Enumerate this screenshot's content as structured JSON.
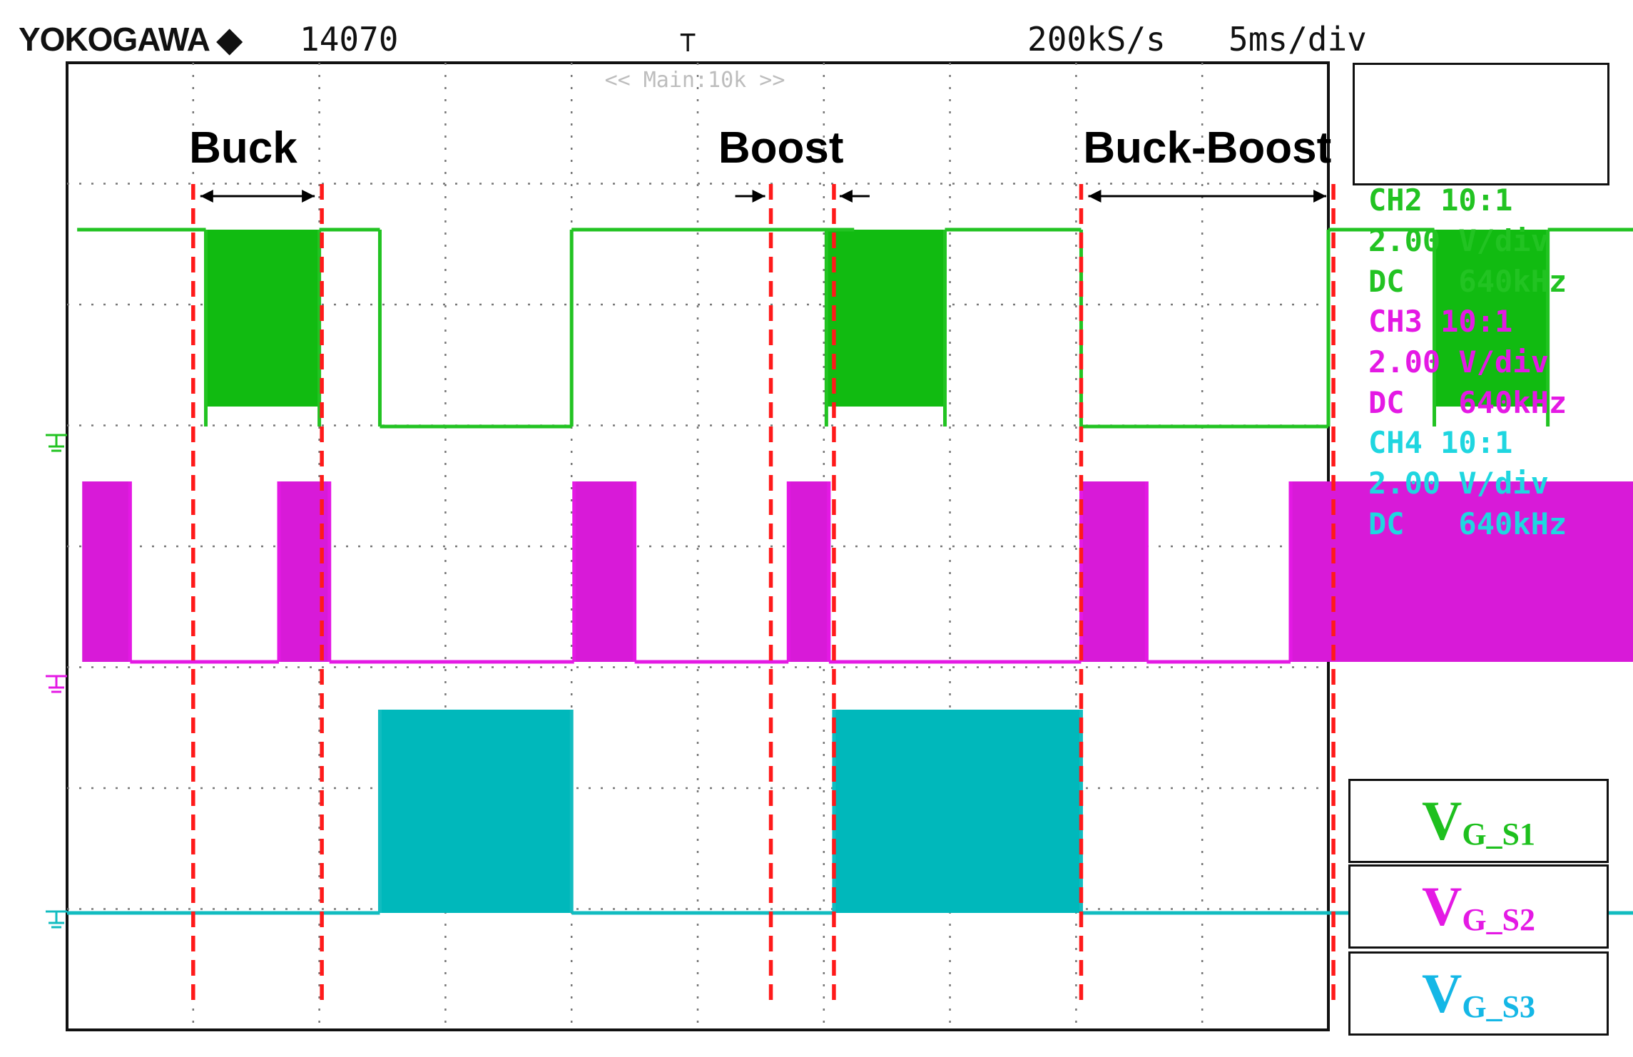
{
  "header": {
    "brand": "YOKOGAWA",
    "brand_mark": "◆",
    "record": "14070",
    "trigger_icon": "trigger-icon",
    "sample_rate": "200kS/s",
    "time_div": "5ms/div"
  },
  "zoom_label": "<< Main:10k >>",
  "channel_info": [
    {
      "name": "CH2 10:1",
      "vdiv": "2.00 V/div",
      "coupling": "DC",
      "bw": "640kHz",
      "color": "#22c322"
    },
    {
      "name": "CH3 10:1",
      "vdiv": "2.00 V/div",
      "coupling": "DC",
      "bw": "640kHz",
      "color": "#e419e4"
    },
    {
      "name": "CH4 10:1",
      "vdiv": "2.00 V/div",
      "coupling": "DC",
      "bw": "640kHz",
      "color": "#1fd6e0"
    }
  ],
  "legend": [
    {
      "main": "V",
      "sub": "G_S1",
      "color": "#1ec01e"
    },
    {
      "main": "V",
      "sub": "G_S2",
      "color": "#e419e4"
    },
    {
      "main": "V",
      "sub": "G_S3",
      "color": "#14b7e6"
    }
  ],
  "chart_data": {
    "type": "line",
    "x_unit": "ms",
    "time_per_div_ms": 5,
    "x_divisions": 10,
    "y_divisions": 8,
    "grid": true,
    "mode_labels": [
      "Buck",
      "Boost",
      "Buck-Boost"
    ],
    "mode_markers_ms": [
      5.0,
      10.1,
      27.9,
      30.4,
      40.2,
      50.2
    ],
    "series": [
      {
        "channel": "CH2",
        "color": "#22c322",
        "segments": [
          {
            "from": 0.4,
            "to": 5.5,
            "state": "high"
          },
          {
            "from": 5.5,
            "to": 10.0,
            "state": "pwm"
          },
          {
            "from": 10.0,
            "to": 12.4,
            "state": "high"
          },
          {
            "from": 12.4,
            "to": 20.0,
            "state": "low"
          },
          {
            "from": 20.0,
            "to": 31.2,
            "state": "high"
          },
          {
            "from": 30.1,
            "to": 34.8,
            "state": "pwm"
          },
          {
            "from": 34.8,
            "to": 40.2,
            "state": "high"
          },
          {
            "from": 40.2,
            "to": 50.0,
            "state": "low"
          },
          {
            "from": 50.0,
            "to": 54.2,
            "state": "high"
          },
          {
            "from": 54.2,
            "to": 58.7,
            "state": "pwm"
          },
          {
            "from": 58.7,
            "to": 62.5,
            "state": "high"
          }
        ]
      },
      {
        "channel": "CH3",
        "color": "#e419e4",
        "segments": [
          {
            "from": 0.6,
            "to": 2.5,
            "state": "pwm"
          },
          {
            "from": 2.5,
            "to": 8.4,
            "state": "low"
          },
          {
            "from": 8.4,
            "to": 10.4,
            "state": "pwm"
          },
          {
            "from": 10.4,
            "to": 20.1,
            "state": "low"
          },
          {
            "from": 20.1,
            "to": 22.5,
            "state": "pwm"
          },
          {
            "from": 22.5,
            "to": 28.6,
            "state": "low"
          },
          {
            "from": 28.6,
            "to": 30.2,
            "state": "pwm"
          },
          {
            "from": 30.2,
            "to": 40.2,
            "state": "low"
          },
          {
            "from": 40.2,
            "to": 42.8,
            "state": "pwm"
          },
          {
            "from": 42.8,
            "to": 48.5,
            "state": "low"
          },
          {
            "from": 48.5,
            "to": 62.5,
            "state": "pwm"
          }
        ]
      },
      {
        "channel": "CH4",
        "color": "#12bcc0",
        "segments": [
          {
            "from": 0.0,
            "to": 12.4,
            "state": "low"
          },
          {
            "from": 12.4,
            "to": 20.0,
            "state": "pwm"
          },
          {
            "from": 20.0,
            "to": 30.4,
            "state": "low"
          },
          {
            "from": 30.4,
            "to": 40.2,
            "state": "pwm"
          },
          {
            "from": 40.2,
            "to": 62.5,
            "state": "low"
          }
        ]
      }
    ]
  }
}
